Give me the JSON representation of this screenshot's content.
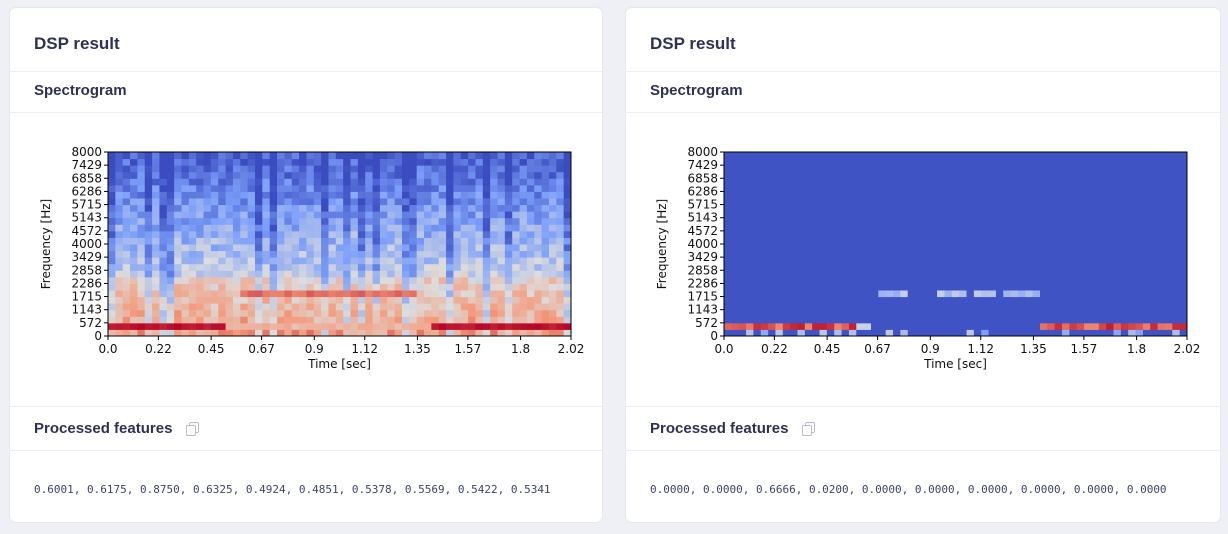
{
  "panels": [
    {
      "title": "DSP result",
      "spectrogram_label": "Spectrogram",
      "features_label": "Processed features",
      "features_values": "0.6001, 0.6175, 0.8750, 0.6325, 0.4924, 0.4851, 0.5378, 0.5569, 0.5422, 0.5341",
      "chart_data": {
        "type": "heatmap",
        "title": "Spectrogram",
        "xlabel": "Time [sec]",
        "ylabel": "Frequency [Hz]",
        "xticks": [
          "0.0",
          "0.22",
          "0.45",
          "0.67",
          "0.9",
          "1.12",
          "1.35",
          "1.57",
          "1.8",
          "2.02"
        ],
        "yticks": [
          "0",
          "572",
          "1143",
          "1715",
          "2286",
          "2858",
          "3429",
          "4000",
          "4572",
          "5143",
          "5715",
          "6286",
          "6858",
          "7429",
          "8000"
        ],
        "xlim": [
          0.0,
          2.02
        ],
        "ylim": [
          0,
          8000
        ],
        "colormap": "coolwarm"
      }
    },
    {
      "title": "DSP result",
      "spectrogram_label": "Spectrogram",
      "features_label": "Processed features",
      "features_values": "0.0000, 0.0000, 0.6666, 0.0200, 0.0000, 0.0000, 0.0000, 0.0000, 0.0000, 0.0000",
      "chart_data": {
        "type": "heatmap",
        "title": "Spectrogram",
        "xlabel": "Time [sec]",
        "ylabel": "Frequency [Hz]",
        "xticks": [
          "0.0",
          "0.22",
          "0.45",
          "0.67",
          "0.9",
          "1.12",
          "1.35",
          "1.57",
          "1.8",
          "2.02"
        ],
        "yticks": [
          "0",
          "572",
          "1143",
          "1715",
          "2286",
          "2858",
          "3429",
          "4000",
          "4572",
          "5143",
          "5715",
          "6286",
          "6858",
          "7429",
          "8000"
        ],
        "xlim": [
          0.0,
          2.02
        ],
        "ylim": [
          0,
          8000
        ],
        "colormap": "coolwarm"
      }
    }
  ]
}
